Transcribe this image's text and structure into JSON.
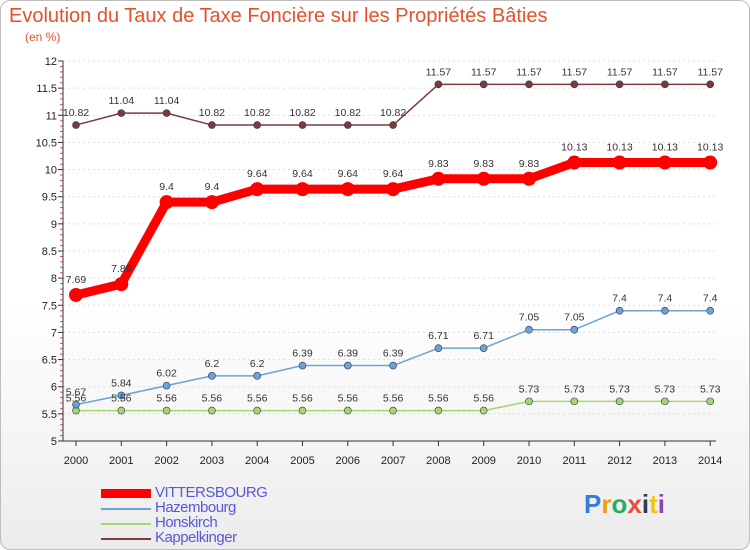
{
  "title": "Evolution du Taux de Taxe Foncière sur les Propriétés Bâties",
  "unit": "(en %)",
  "logo": {
    "letters": [
      "P",
      "r",
      "o",
      "x",
      "i",
      "t",
      "i"
    ],
    "colors": [
      "#3a7bd5",
      "#f39c12",
      "#27ae60",
      "#e74c3c",
      "#2c3e50",
      "#f1c40f",
      "#8e44ad"
    ]
  },
  "chart_data": {
    "type": "line",
    "title": "Evolution du Taux de Taxe Foncière sur les Propriétés Bâties",
    "ylabel": "(en %)",
    "xlabel": "",
    "categories": [
      "2000",
      "2001",
      "2002",
      "2003",
      "2004",
      "2005",
      "2006",
      "2007",
      "2008",
      "2009",
      "2010",
      "2011",
      "2012",
      "2013",
      "2014"
    ],
    "ylim": [
      5,
      12
    ],
    "yticks": [
      "5",
      "5.5",
      "6",
      "6.5",
      "7",
      "7.5",
      "8",
      "8.5",
      "9",
      "9.5",
      "10",
      "10.5",
      "11",
      "11.5",
      "12"
    ],
    "series": [
      {
        "name": "VITTERSBOURG",
        "color": "#ff0000",
        "values": [
          7.69,
          7.89,
          9.4,
          9.4,
          9.64,
          9.64,
          9.64,
          9.64,
          9.83,
          9.83,
          9.83,
          10.13,
          10.13,
          10.13,
          10.13
        ],
        "labels": [
          "7.69",
          "7.89",
          "9.4",
          "9.4",
          "9.64",
          "9.64",
          "9.64",
          "9.64",
          "9.83",
          "9.83",
          "9.83",
          "10.13",
          "10.13",
          "10.13",
          "10.13"
        ]
      },
      {
        "name": "Hazembourg",
        "color": "#6aa3d4",
        "values": [
          5.67,
          5.84,
          6.02,
          6.2,
          6.2,
          6.39,
          6.39,
          6.39,
          6.71,
          6.71,
          7.05,
          7.05,
          7.4,
          7.4,
          7.4
        ],
        "labels": [
          "5.67",
          "5.84",
          "6.02",
          "6.2",
          "6.2",
          "6.39",
          "6.39",
          "6.39",
          "6.71",
          "6.71",
          "7.05",
          "7.05",
          "7.4",
          "7.4",
          "7.4"
        ]
      },
      {
        "name": "Honskirch",
        "color": "#a6d76e",
        "values": [
          5.56,
          5.56,
          5.56,
          5.56,
          5.56,
          5.56,
          5.56,
          5.56,
          5.56,
          5.56,
          5.73,
          5.73,
          5.73,
          5.73,
          5.73
        ],
        "labels": [
          "5.56",
          "5.56",
          "5.56",
          "5.56",
          "5.56",
          "5.56",
          "5.56",
          "5.56",
          "5.56",
          "5.56",
          "5.73",
          "5.73",
          "5.73",
          "5.73",
          "5.73"
        ]
      },
      {
        "name": "Kappelkinger",
        "color": "#7a3b3b",
        "values": [
          10.82,
          11.04,
          11.04,
          10.82,
          10.82,
          10.82,
          10.82,
          10.82,
          11.57,
          11.57,
          11.57,
          11.57,
          11.57,
          11.57,
          11.57
        ],
        "labels": [
          "10.82",
          "11.04",
          "11.04",
          "10.82",
          "10.82",
          "10.82",
          "10.82",
          "10.82",
          "11.57",
          "11.57",
          "11.57",
          "11.57",
          "11.57",
          "11.57",
          "11.57"
        ]
      }
    ]
  }
}
